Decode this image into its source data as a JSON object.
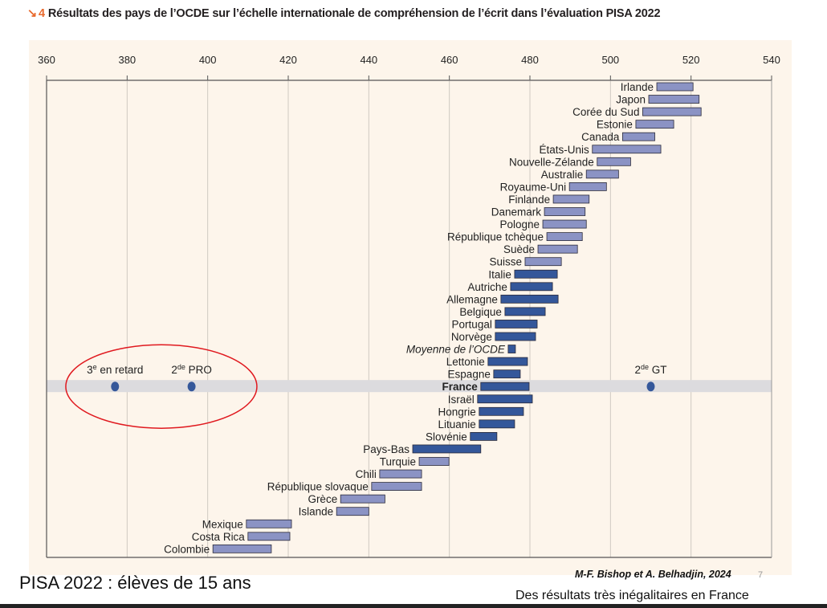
{
  "header": {
    "arrow_icon": "↘",
    "figure_number": "4",
    "title": "Résultats des pays de l’OCDE sur l’échelle internationale de compréhension de l’écrit dans l’évaluation PISA 2022"
  },
  "footer": {
    "caption_left": "PISA 2022 : élèves de 15 ans",
    "credit": "M-F. Bishop et A. Belhadjin, 2024",
    "page_number": "7",
    "subtitle": "Des résultats très inégalitaires en France"
  },
  "colors": {
    "light_bar": "#8b93c4",
    "dark_bar": "#34579a",
    "point": "#34579a",
    "highlight_band": "#dcdbde",
    "ellipse": "#e0191f",
    "accent": "#e8692c",
    "panel_bg": "#fdf5eb"
  },
  "chart_data": {
    "type": "range-bar",
    "title": "Résultats des pays de l’OCDE sur l’échelle internationale de compréhension de l’écrit dans l’évaluation PISA 2022",
    "xlabel": "",
    "ylabel": "",
    "xlim": [
      360,
      540
    ],
    "x_ticks": [
      360,
      380,
      400,
      420,
      440,
      460,
      480,
      500,
      520,
      540
    ],
    "grid": true,
    "series": [
      {
        "name": "Irlande",
        "low": 511.5,
        "high": 520.5,
        "shade": "light"
      },
      {
        "name": "Japon",
        "low": 509.5,
        "high": 522,
        "shade": "light"
      },
      {
        "name": "Corée du Sud",
        "low": 508,
        "high": 522.5,
        "shade": "light"
      },
      {
        "name": "Estonie",
        "low": 506.3,
        "high": 515.7,
        "shade": "light"
      },
      {
        "name": "Canada",
        "low": 503,
        "high": 511,
        "shade": "light"
      },
      {
        "name": "États-Unis",
        "low": 495.5,
        "high": 512.5,
        "shade": "light"
      },
      {
        "name": "Nouvelle-Zélande",
        "low": 496.7,
        "high": 505,
        "shade": "light"
      },
      {
        "name": "Australie",
        "low": 494,
        "high": 502,
        "shade": "light"
      },
      {
        "name": "Royaume-Uni",
        "low": 489.8,
        "high": 499,
        "shade": "light"
      },
      {
        "name": "Finlande",
        "low": 485.8,
        "high": 494.7,
        "shade": "light"
      },
      {
        "name": "Danemark",
        "low": 483.6,
        "high": 493.7,
        "shade": "light"
      },
      {
        "name": "Pologne",
        "low": 483.2,
        "high": 494,
        "shade": "light"
      },
      {
        "name": "République tchèque",
        "low": 484.2,
        "high": 493,
        "shade": "light"
      },
      {
        "name": "Suède",
        "low": 482,
        "high": 491.8,
        "shade": "light"
      },
      {
        "name": "Suisse",
        "low": 478.8,
        "high": 487.8,
        "shade": "light"
      },
      {
        "name": "Italie",
        "low": 476.2,
        "high": 486.8,
        "shade": "dark"
      },
      {
        "name": "Autriche",
        "low": 475.2,
        "high": 485.6,
        "shade": "dark"
      },
      {
        "name": "Allemagne",
        "low": 472.8,
        "high": 487,
        "shade": "dark"
      },
      {
        "name": "Belgique",
        "low": 473.8,
        "high": 483.8,
        "shade": "dark"
      },
      {
        "name": "Portugal",
        "low": 471.4,
        "high": 481.8,
        "shade": "dark"
      },
      {
        "name": "Norvège",
        "low": 471.4,
        "high": 481.4,
        "shade": "dark"
      },
      {
        "name": "Moyenne de l’OCDE",
        "low": 474.6,
        "high": 476.4,
        "shade": "dark",
        "italic": true
      },
      {
        "name": "Lettonie",
        "low": 469.6,
        "high": 479.4,
        "shade": "dark"
      },
      {
        "name": "Espagne",
        "low": 471,
        "high": 477.6,
        "shade": "dark"
      },
      {
        "name": "France",
        "low": 467.8,
        "high": 479.8,
        "shade": "dark",
        "bold": true,
        "highlight": true
      },
      {
        "name": "Israël",
        "low": 467,
        "high": 480.6,
        "shade": "dark"
      },
      {
        "name": "Hongrie",
        "low": 467.4,
        "high": 478.4,
        "shade": "dark"
      },
      {
        "name": "Lituanie",
        "low": 467.4,
        "high": 476.2,
        "shade": "dark"
      },
      {
        "name": "Slovénie",
        "low": 465.2,
        "high": 471.8,
        "shade": "dark"
      },
      {
        "name": "Pays-Bas",
        "low": 450.9,
        "high": 467.8,
        "shade": "dark"
      },
      {
        "name": "Turquie",
        "low": 452.5,
        "high": 459.9,
        "shade": "light"
      },
      {
        "name": "Chili",
        "low": 442.7,
        "high": 453.1,
        "shade": "light"
      },
      {
        "name": "République slovaque",
        "low": 440.7,
        "high": 453.1,
        "shade": "light"
      },
      {
        "name": "Grèce",
        "low": 433,
        "high": 444,
        "shade": "light"
      },
      {
        "name": "Islande",
        "low": 432,
        "high": 440,
        "shade": "light"
      },
      {
        "name": "Mexique",
        "low": 409.6,
        "high": 420.8,
        "shade": "light"
      },
      {
        "name": "Costa Rica",
        "low": 410,
        "high": 420.4,
        "shade": "light"
      },
      {
        "name": "Colombie",
        "low": 401.3,
        "high": 415.8,
        "shade": "light"
      }
    ],
    "points": [
      {
        "label": "3e en retard",
        "base": "3",
        "sup": "e",
        "rest": " en retard",
        "value": 377
      },
      {
        "label": "2de PRO",
        "base": "2",
        "sup": "de",
        "rest": " PRO",
        "value": 396
      },
      {
        "label": "2de GT",
        "base": "2",
        "sup": "de",
        "rest": " GT",
        "value": 510
      }
    ],
    "annotations": [
      "Red ellipse circling 3e en retard and 2de PRO points"
    ]
  }
}
